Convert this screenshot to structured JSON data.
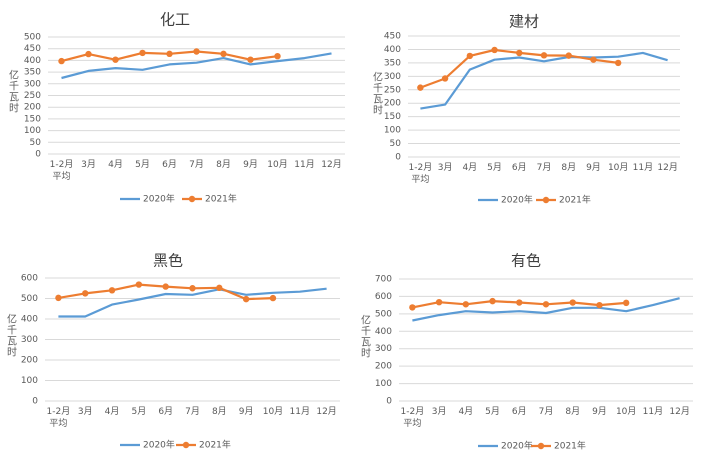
{
  "chart_data": [
    {
      "type": "line",
      "title": "化工",
      "ylabel": "亿千瓦时",
      "ylim": [
        0,
        500
      ],
      "yticks": [
        0,
        50,
        100,
        150,
        200,
        250,
        300,
        350,
        400,
        450,
        500
      ],
      "categories": [
        "1-2月\n平均",
        "3月",
        "4月",
        "5月",
        "6月",
        "7月",
        "8月",
        "9月",
        "10月",
        "11月",
        "12月"
      ],
      "series": [
        {
          "name": "2020年",
          "color": "#5B9BD5",
          "marker": "none",
          "values": [
            325,
            355,
            367,
            360,
            383,
            390,
            410,
            383,
            397,
            410,
            430
          ]
        },
        {
          "name": "2021年",
          "color": "#ED7D31",
          "marker": "circle",
          "values": [
            397,
            427,
            403,
            432,
            428,
            438,
            428,
            403,
            418,
            null,
            null
          ]
        }
      ],
      "legend": "bottom",
      "grid": true
    },
    {
      "type": "line",
      "title": "建材",
      "ylabel": "亿千瓦时",
      "ylim": [
        0,
        450
      ],
      "yticks": [
        0,
        50,
        100,
        150,
        200,
        250,
        300,
        350,
        400,
        450
      ],
      "categories": [
        "1-2月\n平均",
        "3月",
        "4月",
        "5月",
        "6月",
        "7月",
        "8月",
        "9月",
        "10月",
        "11月",
        "12月"
      ],
      "series": [
        {
          "name": "2020年",
          "color": "#5B9BD5",
          "marker": "none",
          "values": [
            180,
            195,
            325,
            362,
            370,
            356,
            372,
            370,
            373,
            387,
            360
          ]
        },
        {
          "name": "2021年",
          "color": "#ED7D31",
          "marker": "circle",
          "values": [
            258,
            292,
            376,
            398,
            387,
            378,
            377,
            362,
            350,
            null,
            null
          ]
        }
      ],
      "legend": "bottom",
      "grid": true
    },
    {
      "type": "line",
      "title": "黑色",
      "ylabel": "亿千瓦时",
      "ylim": [
        0,
        600
      ],
      "yticks": [
        0,
        100,
        200,
        300,
        400,
        500,
        600
      ],
      "categories": [
        "1-2月\n平均",
        "3月",
        "4月",
        "5月",
        "6月",
        "7月",
        "8月",
        "9月",
        "10月",
        "11月",
        "12月"
      ],
      "series": [
        {
          "name": "2020年",
          "color": "#5B9BD5",
          "marker": "none",
          "values": [
            412,
            412,
            470,
            495,
            522,
            518,
            545,
            518,
            528,
            533,
            548
          ]
        },
        {
          "name": "2021年",
          "color": "#ED7D31",
          "marker": "circle",
          "values": [
            503,
            525,
            540,
            568,
            558,
            550,
            552,
            497,
            502,
            null,
            null
          ]
        }
      ],
      "legend": "bottom",
      "grid": true
    },
    {
      "type": "line",
      "title": "有色",
      "ylabel": "亿千瓦时",
      "ylim": [
        0,
        700
      ],
      "yticks": [
        0,
        100,
        200,
        300,
        400,
        500,
        600,
        700
      ],
      "categories": [
        "1-2月\n平均",
        "3月",
        "4月",
        "5月",
        "6月",
        "7月",
        "8月",
        "9月",
        "10月",
        "11月",
        "12月"
      ],
      "series": [
        {
          "name": "2020年",
          "color": "#5B9BD5",
          "marker": "none",
          "values": [
            462,
            493,
            515,
            508,
            515,
            505,
            535,
            535,
            515,
            550,
            590
          ]
        },
        {
          "name": "2021年",
          "color": "#ED7D31",
          "marker": "circle",
          "values": [
            537,
            567,
            555,
            573,
            565,
            555,
            565,
            550,
            563,
            null,
            null
          ]
        }
      ],
      "legend": "bottom",
      "grid": true
    }
  ]
}
